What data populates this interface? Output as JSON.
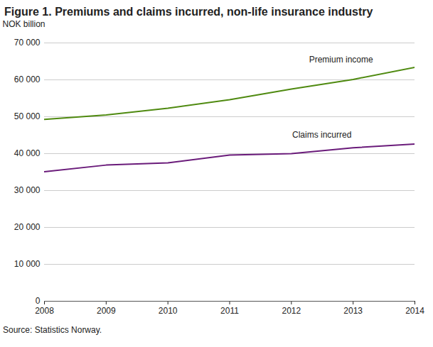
{
  "chart_data": {
    "type": "line",
    "title": "Figure 1. Premiums and claims incurred, non-life insurance industry",
    "y_label": "NOK billion",
    "source": "Source: Statistics Norway.",
    "x": [
      2008,
      2009,
      2010,
      2011,
      2012,
      2013,
      2014
    ],
    "series": [
      {
        "name": "Premium income",
        "color": "#4f8a10",
        "values": [
          49300,
          50500,
          52300,
          54600,
          57500,
          60100,
          63400
        ]
      },
      {
        "name": "Claims incurred",
        "color": "#6a1b7a",
        "values": [
          35100,
          36900,
          37500,
          39600,
          40000,
          41600,
          42600
        ]
      }
    ],
    "xlim": [
      2008,
      2014
    ],
    "xticks": [
      2008,
      2009,
      2010,
      2011,
      2012,
      2013,
      2014
    ],
    "ylim": [
      0,
      70000
    ],
    "yticks": [
      0,
      {
        "value": 10000,
        "label": "10 000"
      },
      {
        "value": 20000,
        "label": "20 000"
      },
      {
        "value": 30000,
        "label": "30 000"
      },
      {
        "value": 40000,
        "label": "40 000"
      },
      {
        "value": 50000,
        "label": "50 000"
      },
      {
        "value": 60000,
        "label": "60 000"
      },
      {
        "value": 70000,
        "label": "70 000"
      }
    ],
    "grid": true
  }
}
